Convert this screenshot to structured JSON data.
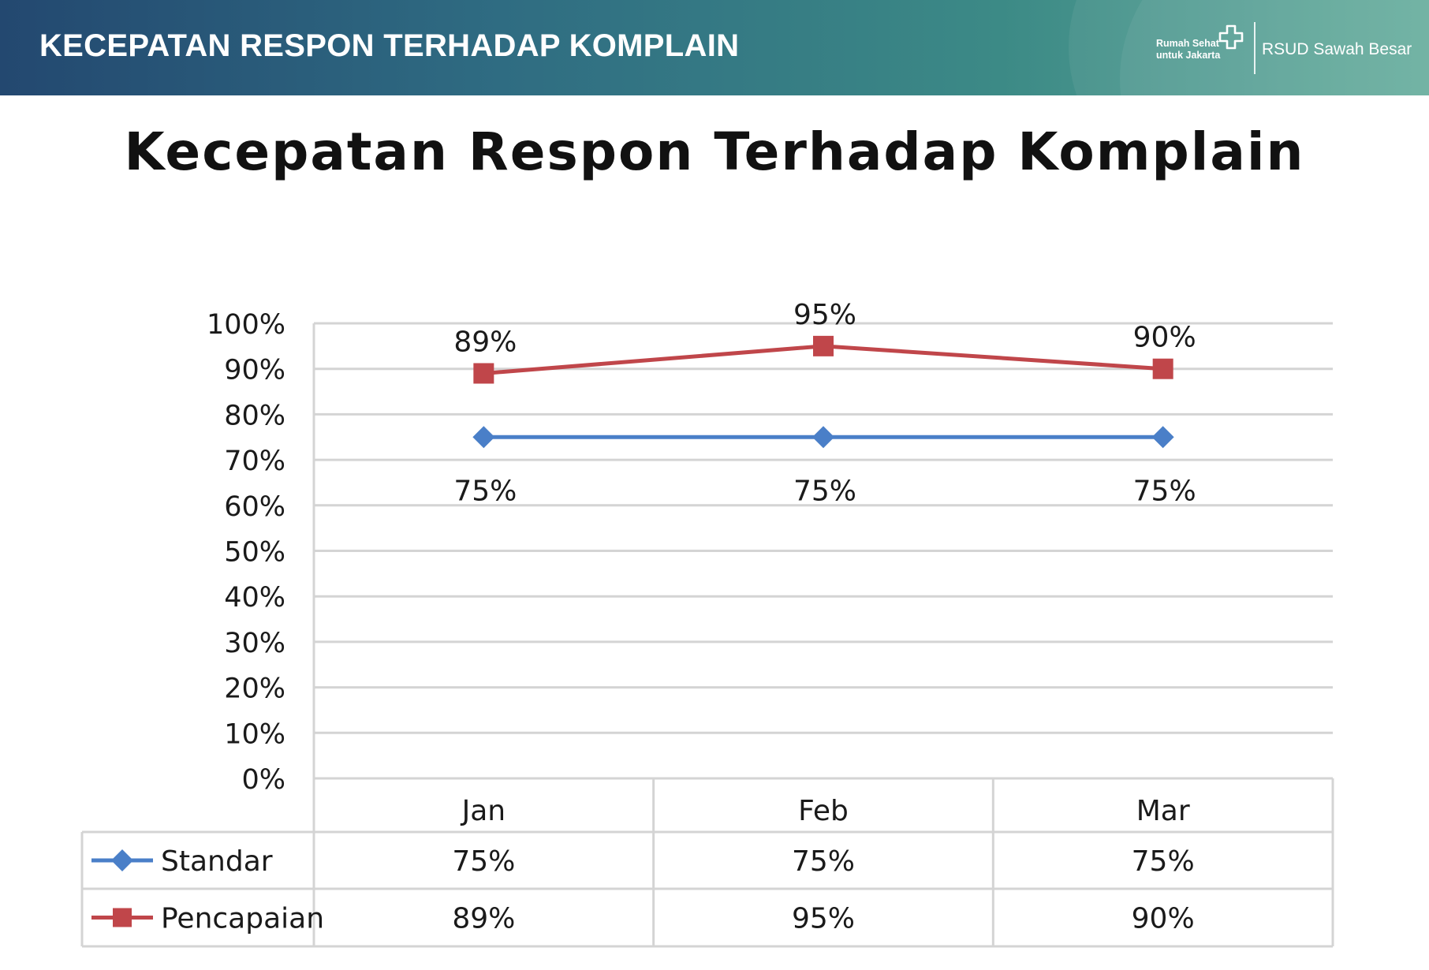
{
  "header": {
    "title": "KECEPATAN RESPON TERHADAP KOMPLAIN",
    "brand_line1": "Rumah Sehat",
    "brand_line2": "untuk Jakarta",
    "hospital": "RSUD Sawah Besar"
  },
  "chart_data": {
    "type": "line",
    "title": "Kecepatan Respon Terhadap Komplain",
    "categories": [
      "Jan",
      "Feb",
      "Mar"
    ],
    "ylim": [
      0,
      100
    ],
    "yticks": [
      "0%",
      "10%",
      "20%",
      "30%",
      "40%",
      "50%",
      "60%",
      "70%",
      "80%",
      "90%",
      "100%"
    ],
    "grid": true,
    "data_table": true,
    "series": [
      {
        "name": "Standar",
        "values": [
          75,
          75,
          75
        ],
        "labels": [
          "75%",
          "75%",
          "75%"
        ],
        "color": "#4a7fc8",
        "marker": "diamond"
      },
      {
        "name": "Pencapaian",
        "values": [
          89,
          95,
          90
        ],
        "labels": [
          "89%",
          "95%",
          "90%"
        ],
        "color": "#c0464a",
        "marker": "square"
      }
    ]
  }
}
